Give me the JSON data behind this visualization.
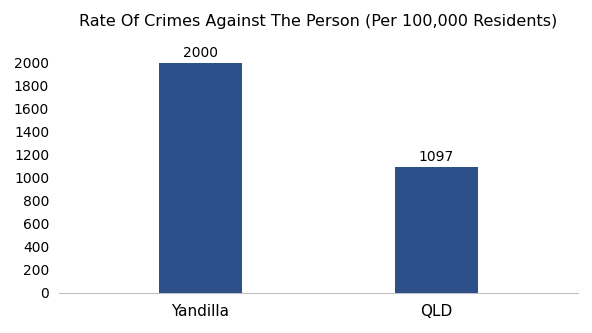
{
  "categories": [
    "Yandilla",
    "QLD"
  ],
  "values": [
    2000,
    1097
  ],
  "bar_color": "#2d4f8a",
  "title": "Rate Of Crimes Against The Person (Per 100,000 Residents)",
  "title_fontsize": 11.5,
  "label_fontsize": 11,
  "value_fontsize": 10,
  "tick_fontsize": 10,
  "ylim": [
    0,
    2200
  ],
  "yticks": [
    0,
    200,
    400,
    600,
    800,
    1000,
    1200,
    1400,
    1600,
    1800,
    2000
  ],
  "background_color": "#ffffff",
  "bar_width": 0.35
}
